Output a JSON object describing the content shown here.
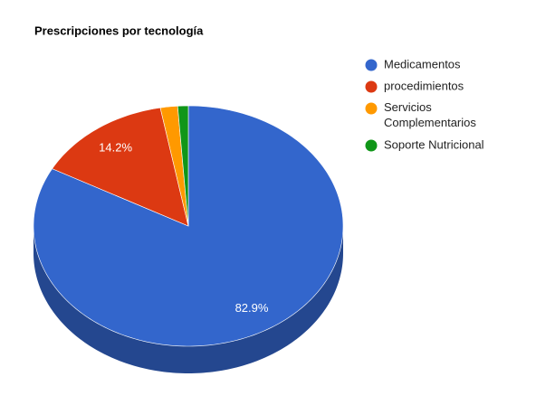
{
  "chart_data": {
    "type": "pie",
    "title": "Prescripciones por tecnología",
    "categories": [
      "Medicamentos",
      "procedimientos",
      "Servicios Complementarios",
      "Soporte Nutricional"
    ],
    "values": [
      82.9,
      14.2,
      1.8,
      1.1
    ],
    "value_labels": [
      "82.9%",
      "14.2%",
      null,
      null
    ],
    "colors": [
      "#3366cc",
      "#dc3912",
      "#ff9900",
      "#109618"
    ],
    "legend": "right",
    "three_d": true
  }
}
